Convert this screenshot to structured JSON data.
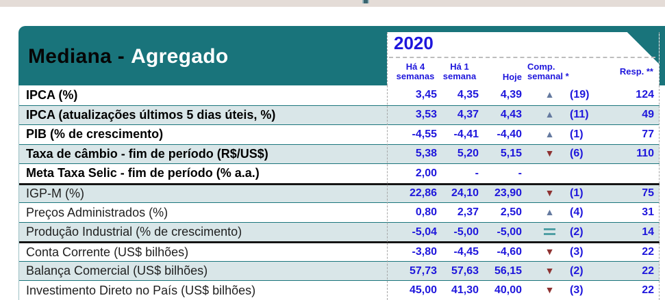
{
  "window": {
    "top_strip_color": "#e4dcd7"
  },
  "table": {
    "title_prefix": "Mediana -",
    "title_suffix": "Agregado",
    "year": "2020",
    "columns": [
      {
        "line1": "Há 4",
        "line2": "semanas"
      },
      {
        "line1": "Há 1",
        "line2": "semana"
      },
      {
        "line1": "Hoje",
        "line2": ""
      },
      {
        "line1": "Comp.",
        "line2": "semanal *"
      },
      {
        "line1": "Resp. **",
        "line2": ""
      }
    ]
  },
  "rows": [
    {
      "label": "IPCA (%)",
      "emphasis": true,
      "v4w": "3,45",
      "v1w": "4,35",
      "today": "4,39",
      "trend": "up",
      "count": "(19)",
      "resp": "124",
      "thick_top": false
    },
    {
      "label": "IPCA (atualizações últimos 5 dias úteis, %)",
      "emphasis": true,
      "v4w": "3,53",
      "v1w": "4,37",
      "today": "4,43",
      "trend": "up",
      "count": "(11)",
      "resp": "49",
      "thick_top": false
    },
    {
      "label": "PIB (% de crescimento)",
      "emphasis": true,
      "v4w": "-4,55",
      "v1w": "-4,41",
      "today": "-4,40",
      "trend": "up",
      "count": "(1)",
      "resp": "77",
      "thick_top": false
    },
    {
      "label": "Taxa de câmbio - fim de período (R$/US$)",
      "emphasis": true,
      "v4w": "5,38",
      "v1w": "5,20",
      "today": "5,15",
      "trend": "down",
      "count": "(6)",
      "resp": "110",
      "thick_top": false
    },
    {
      "label": "Meta Taxa Selic - fim de período (% a.a.)",
      "emphasis": true,
      "v4w": "2,00",
      "v1w": "-",
      "today": "-",
      "trend": "none",
      "count": "",
      "resp": "",
      "thick_top": false
    },
    {
      "label": "IGP-M (%)",
      "emphasis": false,
      "v4w": "22,86",
      "v1w": "24,10",
      "today": "23,90",
      "trend": "down",
      "count": "(1)",
      "resp": "75",
      "thick_top": true
    },
    {
      "label": "Preços Administrados (%)",
      "emphasis": false,
      "v4w": "0,80",
      "v1w": "2,37",
      "today": "2,50",
      "trend": "up",
      "count": "(4)",
      "resp": "31",
      "thick_top": false
    },
    {
      "label": "Produção Industrial (% de crescimento)",
      "emphasis": false,
      "v4w": "-5,04",
      "v1w": "-5,00",
      "today": "-5,00",
      "trend": "equal",
      "count": "(2)",
      "resp": "14",
      "thick_top": false
    },
    {
      "label": "Conta Corrente (US$ bilhões)",
      "emphasis": false,
      "v4w": "-3,80",
      "v1w": "-4,45",
      "today": "-4,60",
      "trend": "down",
      "count": "(3)",
      "resp": "22",
      "thick_top": true
    },
    {
      "label": "Balança Comercial (US$ bilhões)",
      "emphasis": false,
      "v4w": "57,73",
      "v1w": "57,63",
      "today": "56,15",
      "trend": "down",
      "count": "(2)",
      "resp": "22",
      "thick_top": false
    },
    {
      "label": "Investimento Direto no País (US$ bilhões)",
      "emphasis": false,
      "v4w": "45,00",
      "v1w": "41,30",
      "today": "40,00",
      "trend": "down",
      "count": "(3)",
      "resp": "22",
      "thick_top": false
    }
  ],
  "colors": {
    "header_teal": "#19747b",
    "row_stripe": "#d9e6e8",
    "value_blue": "#1e16dc",
    "up_arrow": "#64799f",
    "down_arrow": "#8e3231",
    "equal_sign": "#4f9fa4"
  }
}
